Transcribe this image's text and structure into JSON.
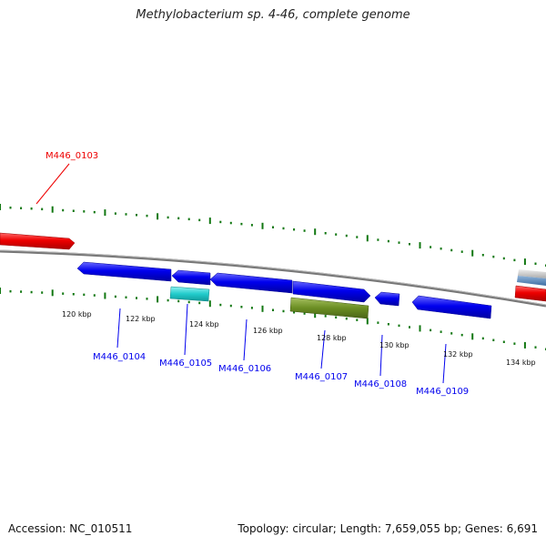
{
  "title": "Methylobacterium sp. 4-46, complete genome",
  "footer": {
    "accession": "Accession: NC_010511",
    "summary": "Topology: circular; Length: 7,659,055 bp; Genes: 6,691"
  },
  "colors": {
    "forward_gene": "#ee0000",
    "reverse_gene": "#0000ee",
    "rna_gene": "#22cccc",
    "misc_feature": "#6b8e23",
    "tick": "#117711",
    "backbone": "#777777"
  },
  "tick_labels": [
    "120 kbp",
    "122 kbp",
    "124 kbp",
    "126 kbp",
    "128 kbp",
    "130 kbp",
    "132 kbp",
    "134 kbp"
  ],
  "gene_labels": [
    {
      "id": "M446_0103",
      "strand": "forward"
    },
    {
      "id": "M446_0104",
      "strand": "reverse"
    },
    {
      "id": "M446_0105",
      "strand": "reverse"
    },
    {
      "id": "M446_0106",
      "strand": "reverse"
    },
    {
      "id": "M446_0107",
      "strand": "reverse"
    },
    {
      "id": "M446_0108",
      "strand": "reverse"
    },
    {
      "id": "M446_0109",
      "strand": "reverse"
    }
  ]
}
